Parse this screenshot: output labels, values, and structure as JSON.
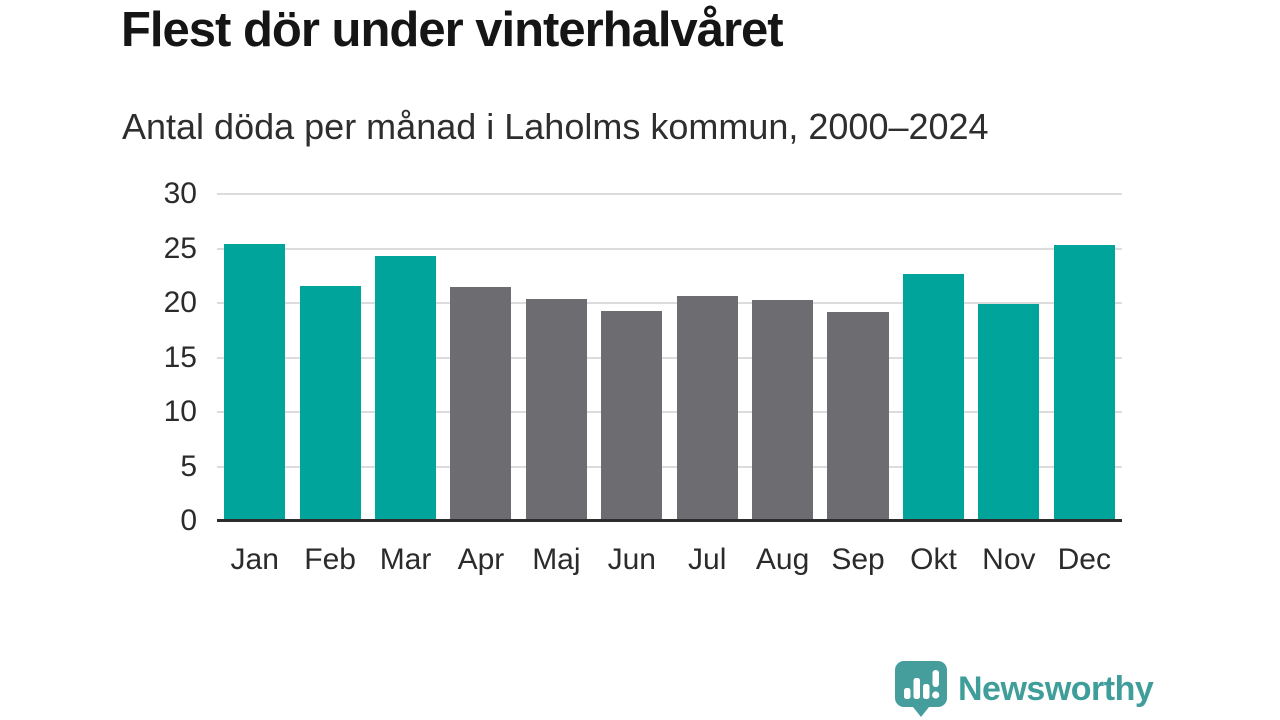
{
  "chart_data": {
    "type": "bar",
    "title": "Flest dör under vinterhalvåret",
    "subtitle": "Antal döda per månad i Laholms kommun, 2000–2024",
    "categories": [
      "Jan",
      "Feb",
      "Mar",
      "Apr",
      "Maj",
      "Jun",
      "Jul",
      "Aug",
      "Sep",
      "Okt",
      "Nov",
      "Dec"
    ],
    "values": [
      25.4,
      21.6,
      24.3,
      21.5,
      20.4,
      19.3,
      20.6,
      20.3,
      19.2,
      22.7,
      19.9,
      25.3
    ],
    "bar_colors": [
      "#00a49b",
      "#00a49b",
      "#00a49b",
      "#6d6d71",
      "#6d6d71",
      "#6d6d71",
      "#6d6d71",
      "#6d6d71",
      "#6d6d71",
      "#00a49b",
      "#00a49b",
      "#00a49b"
    ],
    "highlight_color": "#00a49b",
    "muted_color": "#6d6d71",
    "xlabel": "",
    "ylabel": "",
    "ylim": [
      0,
      30
    ],
    "yticks": [
      0,
      5,
      10,
      15,
      20,
      25,
      30
    ],
    "grid": true,
    "gridline_color": "#dcdcdc",
    "baseline_color": "#2d2d2d",
    "legend": "none"
  },
  "footer": {
    "brand": "Newsworthy",
    "brand_color": "#3f9d9a",
    "logo_icon": "speech-bubble-bar-chart-icon"
  }
}
